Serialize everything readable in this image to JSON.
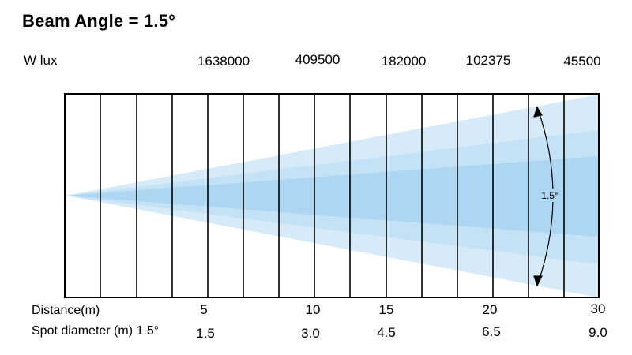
{
  "title": "Beam Angle = 1.5°",
  "lux_label": "W lux",
  "lux_values": [
    "1638000",
    "409500",
    "182000",
    "102375",
    "45500"
  ],
  "distance_label": "Distance(m)",
  "distances": [
    "5",
    "10",
    "15",
    "20",
    "30"
  ],
  "spot_label": "Spot diameter (m) 1.5°",
  "spot_diameters": [
    "1.5",
    "3.0",
    "4.5",
    "6.5",
    "9.0"
  ],
  "angle_label": "1.5°",
  "colors": {
    "beam_outer": "#d6eaf8",
    "beam_mid": "#bfdff3",
    "beam_core": "#a9d4f0",
    "lines": "#000000"
  }
}
